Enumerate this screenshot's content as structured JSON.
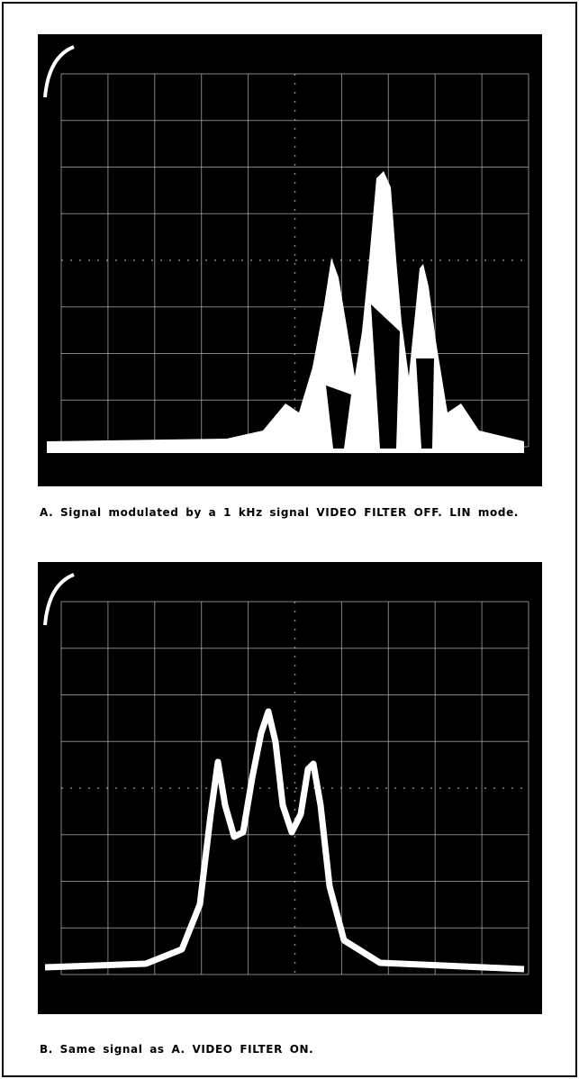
{
  "figures": [
    {
      "caption": "A. Signal modulated by a 1 kHz signal VIDEO FILTER OFF. LIN mode."
    },
    {
      "caption": "B. Same signal as A. VIDEO FILTER ON."
    }
  ]
}
